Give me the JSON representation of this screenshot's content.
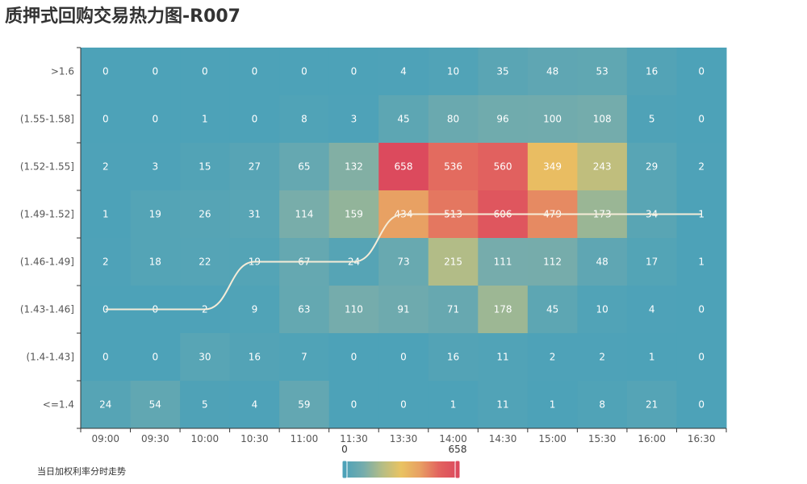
{
  "chart_data": {
    "type": "heatmap",
    "title": "质押式回购交易热力图-R007",
    "x": [
      "09:00",
      "09:30",
      "10:00",
      "10:30",
      "11:00",
      "11:30",
      "13:30",
      "14:00",
      "14:30",
      "15:00",
      "15:30",
      "16:00",
      "16:30"
    ],
    "y": [
      ">1.6",
      "(1.55-1.58]",
      "(1.52-1.55]",
      "(1.49-1.52]",
      "(1.46-1.49]",
      "(1.43-1.46]",
      "(1.4-1.43]",
      "<=1.4"
    ],
    "values": [
      [
        0,
        0,
        0,
        0,
        0,
        0,
        4,
        10,
        35,
        48,
        53,
        16,
        0
      ],
      [
        0,
        0,
        1,
        0,
        8,
        3,
        45,
        80,
        96,
        100,
        108,
        5,
        0
      ],
      [
        2,
        3,
        15,
        27,
        65,
        132,
        658,
        536,
        560,
        349,
        243,
        29,
        2
      ],
      [
        1,
        19,
        26,
        31,
        114,
        159,
        434,
        513,
        606,
        479,
        173,
        34,
        1
      ],
      [
        2,
        18,
        22,
        19,
        67,
        24,
        73,
        215,
        111,
        112,
        48,
        17,
        1
      ],
      [
        0,
        0,
        2,
        9,
        63,
        110,
        91,
        71,
        178,
        45,
        10,
        4,
        0
      ],
      [
        0,
        0,
        30,
        16,
        7,
        0,
        0,
        16,
        11,
        2,
        2,
        1,
        0
      ],
      [
        24,
        54,
        5,
        4,
        59,
        0,
        0,
        1,
        11,
        1,
        8,
        21,
        0
      ]
    ],
    "visual_map": {
      "min": 0,
      "max": 658,
      "min_label": "0",
      "max_label": "658",
      "colors": [
        "#4da2b8",
        "#75acac",
        "#b5bd85",
        "#e9c362",
        "#e8a063",
        "#e2645f",
        "#dc4a5d"
      ]
    },
    "line_series": {
      "name": "当日加权利率分时走势",
      "color": "#f5ecd8",
      "values": [
        "(1.43-1.46]",
        "(1.43-1.46]",
        "(1.43-1.46]",
        "(1.46-1.49]",
        "(1.46-1.49]",
        "(1.46-1.49]",
        "(1.49-1.52]",
        "(1.49-1.52]",
        "(1.49-1.52]",
        "(1.49-1.52]",
        "(1.49-1.52]",
        "(1.49-1.52]",
        "(1.49-1.52]"
      ]
    },
    "legend_position": "bottom-left"
  }
}
